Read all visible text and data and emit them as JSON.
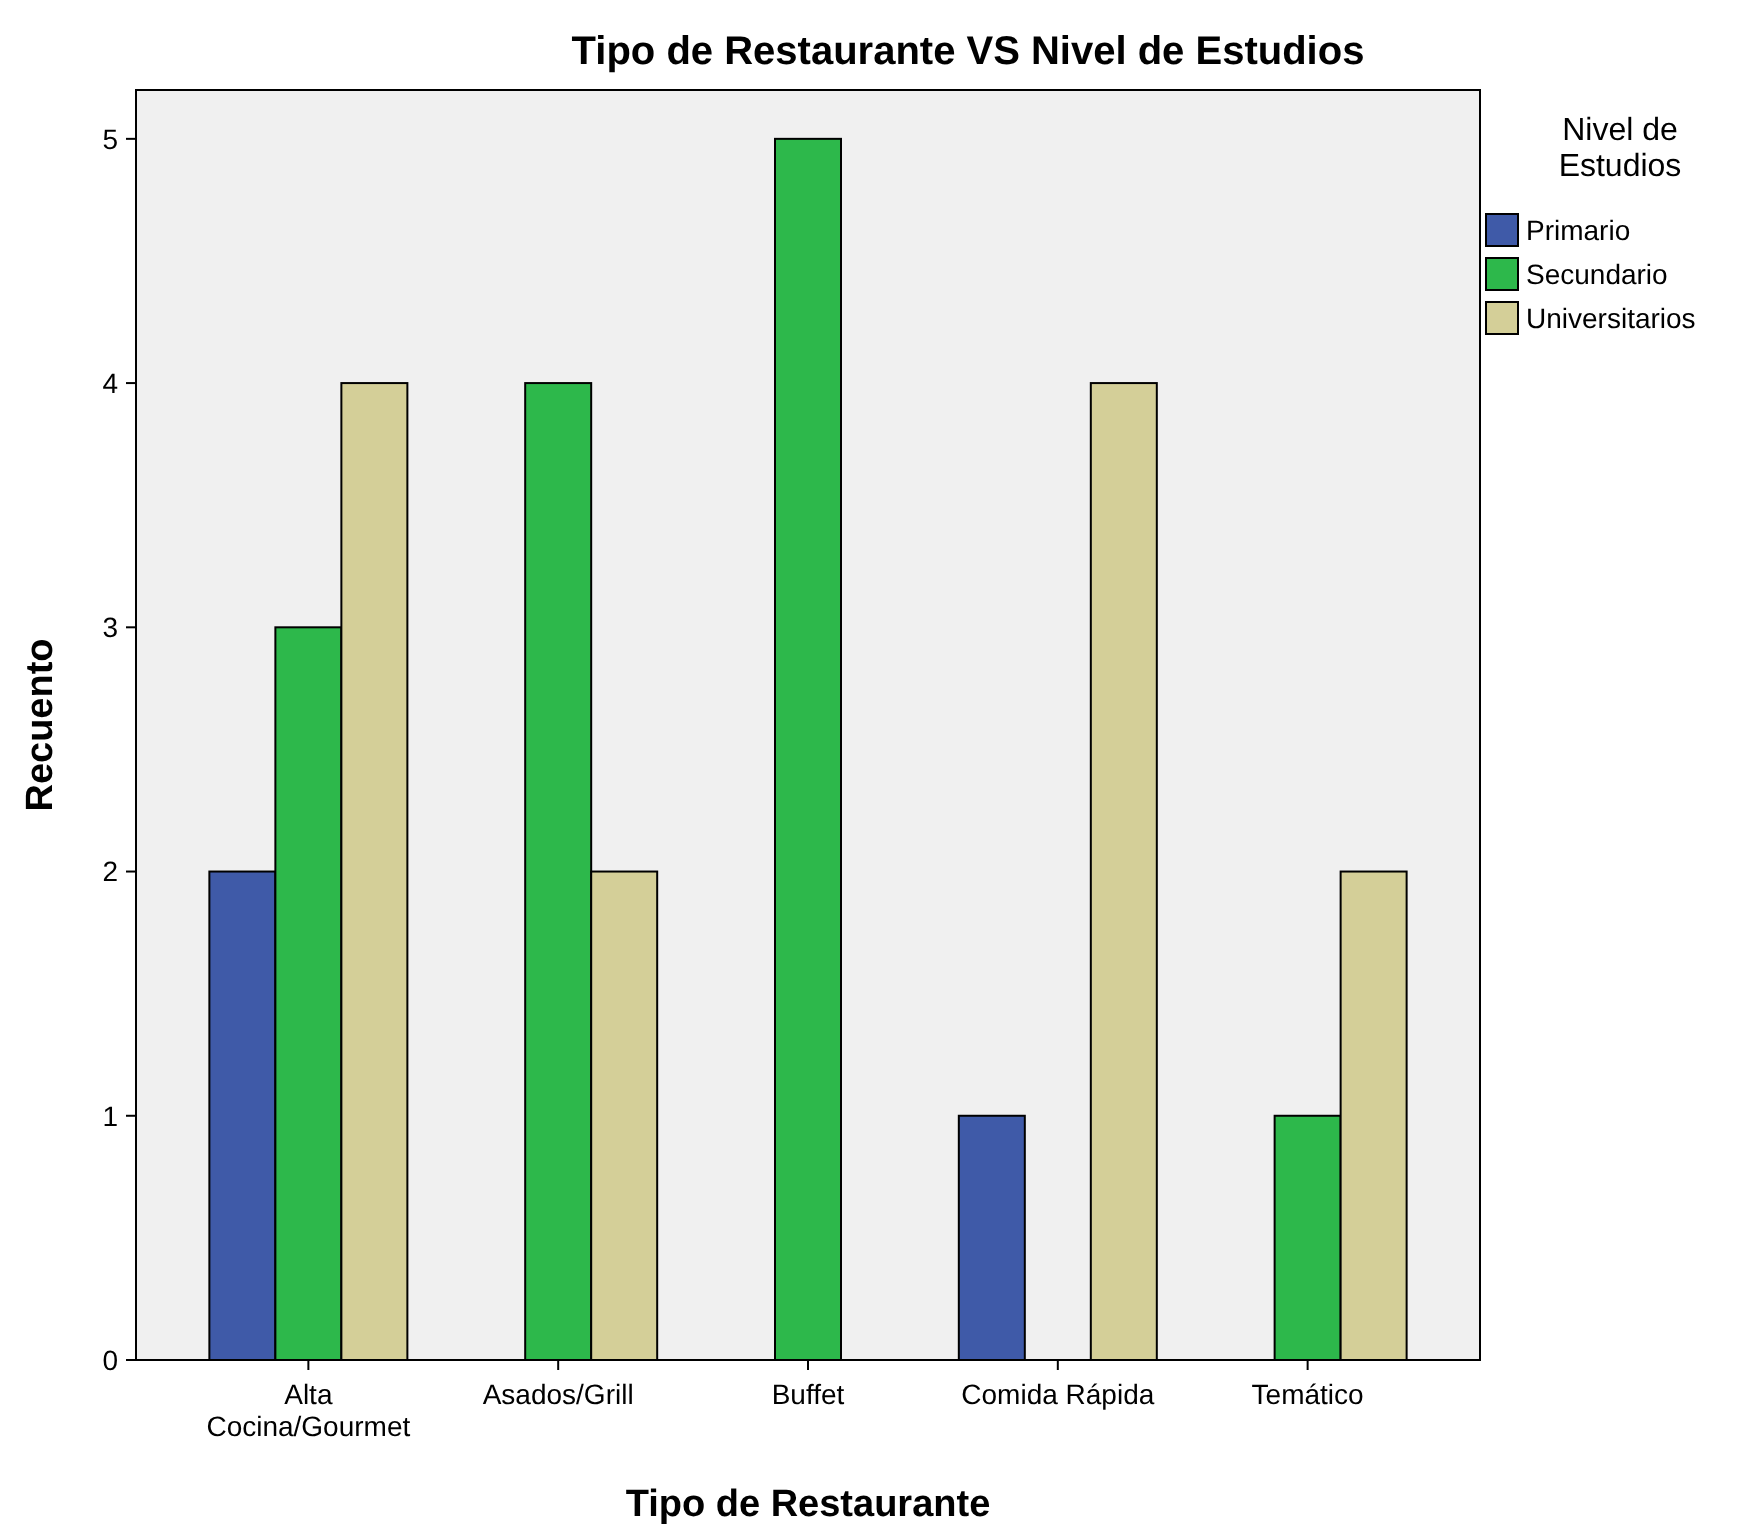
{
  "chart_data": {
    "type": "bar",
    "title": "Tipo de Restaurante VS Nivel de Estudios",
    "xlabel": "Tipo de Restaurante",
    "ylabel": "Recuento",
    "legend_title": "Nivel de Estudios",
    "categories": [
      "Alta Cocina/Gourmet",
      "Asados/Grill",
      "Buffet",
      "Comida Rápida",
      "Temático"
    ],
    "series": [
      {
        "name": "Primario",
        "color": "#3f5aa8",
        "values": [
          2,
          0,
          0,
          1,
          0
        ]
      },
      {
        "name": "Secundario",
        "color": "#2db84b",
        "values": [
          3,
          4,
          5,
          0,
          1
        ]
      },
      {
        "name": "Universitarios",
        "color": "#d4cf98",
        "values": [
          4,
          2,
          0,
          4,
          2
        ]
      }
    ],
    "ylim": [
      0,
      5.2
    ],
    "yticks": [
      0,
      1,
      2,
      3,
      4,
      5
    ],
    "grid": false,
    "legend": "top right"
  }
}
